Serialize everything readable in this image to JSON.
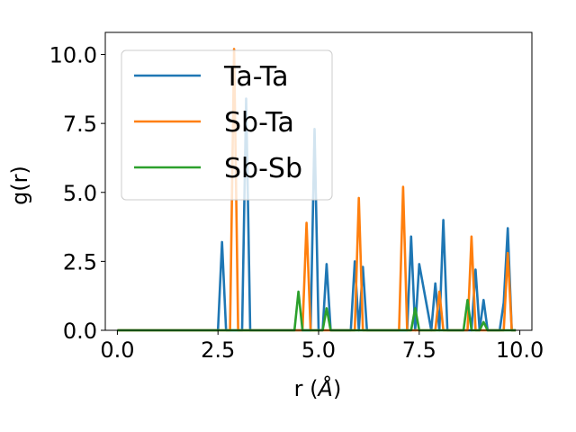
{
  "chart_data": {
    "type": "line",
    "xlabel_text": "r (",
    "xlabel_unit": "Å",
    "xlabel_close": ")",
    "ylabel": "g(r)",
    "xlim": [
      -0.3,
      10.3
    ],
    "ylim": [
      0,
      10.8
    ],
    "xticks": [
      0.0,
      2.5,
      5.0,
      7.5,
      10.0
    ],
    "xtick_labels": [
      "0.0",
      "2.5",
      "5.0",
      "7.5",
      "10.0"
    ],
    "yticks": [
      0.0,
      2.5,
      5.0,
      7.5,
      10.0
    ],
    "ytick_labels": [
      "0.0",
      "2.5",
      "5.0",
      "7.5",
      "10.0"
    ],
    "grid": false,
    "legend_position": "upper-left",
    "series": [
      {
        "name": "Ta-Ta",
        "color": "#1f77b4",
        "x": [
          0,
          2.5,
          2.6,
          2.7,
          3.1,
          3.2,
          3.3,
          4.8,
          4.9,
          5.0,
          5.1,
          5.2,
          5.3,
          5.8,
          5.9,
          6.0,
          6.1,
          6.2,
          6.3,
          7.2,
          7.3,
          7.4,
          7.5,
          7.8,
          7.9,
          8.0,
          8.1,
          8.2,
          8.8,
          8.9,
          9.0,
          9.1,
          9.2,
          9.5,
          9.6,
          9.7,
          9.8,
          9.9
        ],
        "y": [
          0,
          0,
          3.2,
          0,
          0,
          8.4,
          0,
          0,
          7.3,
          0,
          0,
          2.4,
          0,
          0,
          2.5,
          0,
          2.3,
          0,
          0,
          0,
          3.4,
          0,
          2.4,
          0,
          1.7,
          0,
          4.0,
          0,
          0,
          2.2,
          0,
          1.1,
          0,
          0,
          1.0,
          3.7,
          0,
          0
        ]
      },
      {
        "name": "Sb-Ta",
        "color": "#ff7f0e",
        "x": [
          0,
          2.8,
          2.9,
          3.0,
          4.6,
          4.7,
          4.8,
          5.9,
          6.0,
          6.1,
          7.0,
          7.1,
          7.2,
          7.9,
          8.0,
          8.1,
          8.7,
          8.8,
          8.9,
          9.6,
          9.7,
          9.8,
          9.9
        ],
        "y": [
          0,
          0,
          10.2,
          0,
          0,
          3.9,
          0,
          0,
          4.8,
          0,
          0,
          5.2,
          0,
          0,
          1.4,
          0,
          0,
          3.4,
          0,
          0,
          2.8,
          0,
          0
        ]
      },
      {
        "name": "Sb-Sb",
        "color": "#2ca02c",
        "x": [
          0,
          4.4,
          4.5,
          4.6,
          5.1,
          5.2,
          5.3,
          7.3,
          7.4,
          7.5,
          8.6,
          8.7,
          8.8,
          9.0,
          9.1,
          9.2,
          9.9
        ],
        "y": [
          0,
          0,
          1.4,
          0,
          0,
          0.8,
          0,
          0,
          0.8,
          0,
          0,
          1.1,
          0,
          0,
          0.3,
          0,
          0
        ]
      }
    ]
  }
}
